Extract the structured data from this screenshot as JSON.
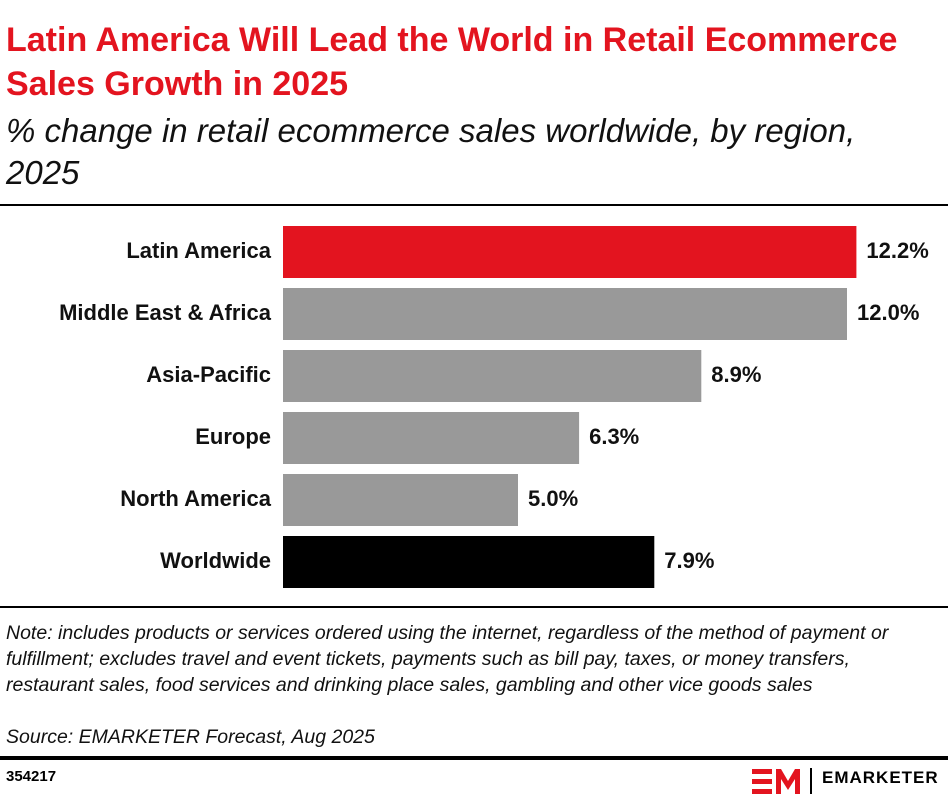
{
  "chart_data": {
    "type": "bar",
    "orientation": "horizontal",
    "title": "Latin America Will Lead the World in Retail Ecommerce Sales Growth in 2025",
    "subtitle": "% change in retail ecommerce sales worldwide, by region, 2025",
    "categories": [
      "Latin America",
      "Middle East & Africa",
      "Asia-Pacific",
      "Europe",
      "North America",
      "Worldwide"
    ],
    "values": [
      12.2,
      12.0,
      8.9,
      6.3,
      5.0,
      7.9
    ],
    "value_labels": [
      "12.2%",
      "12.0%",
      "8.9%",
      "6.3%",
      "5.0%",
      "7.9%"
    ],
    "colors": [
      "#e3141f",
      "#999999",
      "#999999",
      "#999999",
      "#999999",
      "#000000"
    ],
    "note": "Note: includes products or services ordered using the internet, regardless of the method of payment or fulfillment; excludes travel and event tickets, payments such as bill pay, taxes, or money transfers, restaurant sales, food services and drinking place sales, gambling and other vice goods sales",
    "source": "Source: EMARKETER Forecast, Aug 2025",
    "chart_id": "354217",
    "brand": "EMARKETER"
  }
}
